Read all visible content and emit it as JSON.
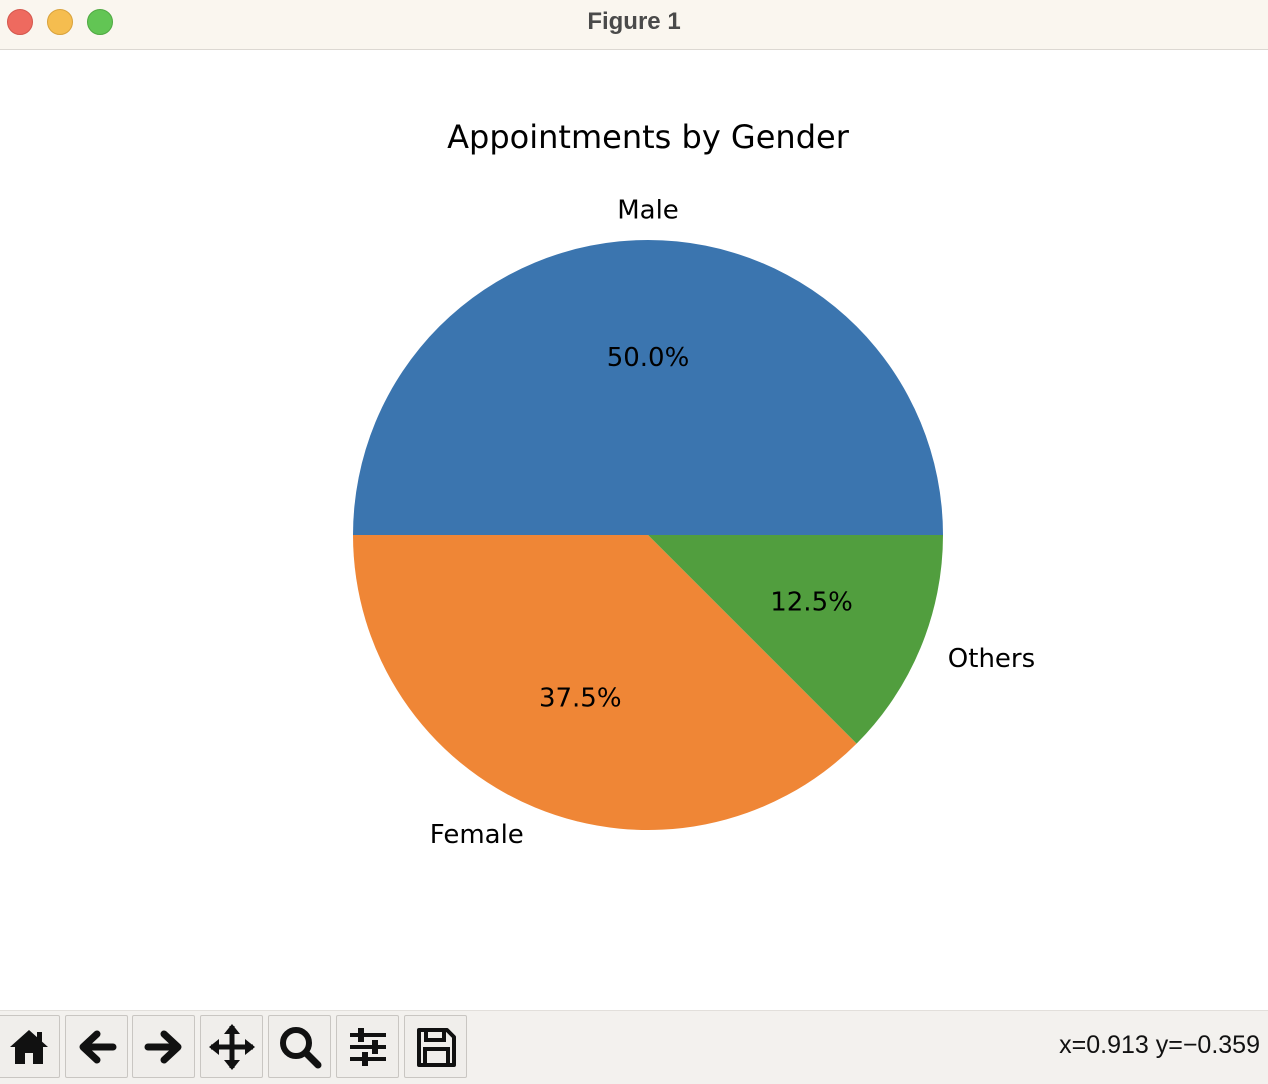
{
  "window": {
    "title": "Figure 1"
  },
  "chart_data": {
    "type": "pie",
    "title": "Appointments by Gender",
    "categories": [
      "Male",
      "Female",
      "Others"
    ],
    "values": [
      50.0,
      37.5,
      12.5
    ],
    "autopct_labels": [
      "50.0%",
      "37.5%",
      "12.5%"
    ],
    "colors": [
      "#3b75af",
      "#ef8636",
      "#519e3e"
    ],
    "start_angle_deg": 0,
    "direction": "counterclockwise"
  },
  "toolbar": {
    "buttons": [
      {
        "name": "home-button",
        "icon": "home-icon"
      },
      {
        "name": "back-button",
        "icon": "arrow-left-icon"
      },
      {
        "name": "forward-button",
        "icon": "arrow-right-icon"
      },
      {
        "name": "pan-button",
        "icon": "move-icon"
      },
      {
        "name": "zoom-button",
        "icon": "magnifier-icon"
      },
      {
        "name": "configure-subplots-button",
        "icon": "sliders-icon"
      },
      {
        "name": "save-button",
        "icon": "floppy-disk-icon"
      }
    ],
    "coordinates": "x=0.913 y=−0.359"
  }
}
